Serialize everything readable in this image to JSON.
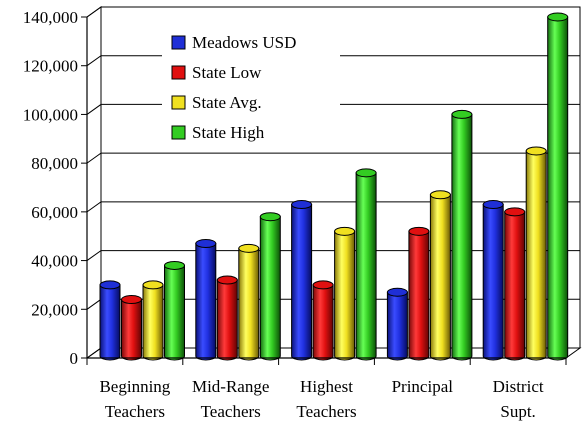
{
  "chart_data": {
    "type": "bar",
    "style": "3d-cylinder",
    "categories": [
      [
        "Beginning",
        "Teachers"
      ],
      [
        "Mid-Range",
        "Teachers"
      ],
      [
        "Highest",
        "Teachers"
      ],
      [
        "Principal"
      ],
      [
        "District",
        "Supt."
      ]
    ],
    "series": [
      {
        "name": "Meadows USD",
        "color": "#1f2fd6",
        "values": [
          30000,
          47000,
          63000,
          27000,
          63000
        ]
      },
      {
        "name": "State Low",
        "color": "#e01010",
        "values": [
          24000,
          32000,
          30000,
          52000,
          60000
        ]
      },
      {
        "name": "State Avg.",
        "color": "#f0e020",
        "values": [
          30000,
          45000,
          52000,
          67000,
          85000
        ]
      },
      {
        "name": "State High",
        "color": "#33cc22",
        "values": [
          38000,
          58000,
          76000,
          100000,
          140000
        ]
      }
    ],
    "yticks": [
      "0",
      "20,000",
      "40,000",
      "60,000",
      "80,000",
      "100,000",
      "120,000",
      "140,000"
    ],
    "ylim": [
      0,
      140000
    ],
    "ystep": 20000,
    "grid": true,
    "legend": "top-left"
  }
}
